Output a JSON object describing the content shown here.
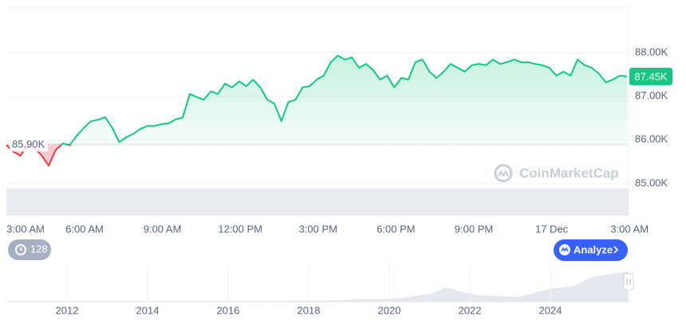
{
  "chart_data": {
    "type": "line",
    "values": [
      85880,
      85730,
      85640,
      85880,
      85820,
      85640,
      85410,
      85770,
      85920,
      85880,
      86100,
      86280,
      86430,
      86460,
      86520,
      86280,
      85950,
      86060,
      86140,
      86250,
      86320,
      86320,
      86360,
      86380,
      86470,
      86510,
      87050,
      86980,
      86920,
      87110,
      87050,
      87290,
      87200,
      87340,
      87230,
      87380,
      87200,
      86920,
      86830,
      86430,
      86870,
      86920,
      87200,
      87230,
      87380,
      87470,
      87780,
      87930,
      87840,
      87890,
      87650,
      87740,
      87600,
      87380,
      87470,
      87200,
      87420,
      87380,
      87780,
      87840,
      87560,
      87420,
      87560,
      87740,
      87650,
      87560,
      87710,
      87740,
      87710,
      87840,
      87740,
      87780,
      87840,
      87780,
      87780,
      87740,
      87710,
      87650,
      87470,
      87560,
      87470,
      87840,
      87710,
      87650,
      87520,
      87320,
      87380,
      87470,
      87450
    ],
    "color": "#16c784",
    "negative_color": "#ea3943",
    "ylim": [
      84270,
      89020
    ],
    "yticks": [
      {
        "value": 85000,
        "label": "85.00K"
      },
      {
        "value": 86000,
        "label": "86.00K"
      },
      {
        "value": 87000,
        "label": "87.00K"
      },
      {
        "value": 88000,
        "label": "88.00K"
      }
    ],
    "xticks": [
      "3:00 AM",
      "6:00 AM",
      "9:00 AM",
      "12:00 PM",
      "3:00 PM",
      "6:00 PM",
      "9:00 PM",
      "17 Dec",
      "3:00 AM"
    ],
    "grid": true,
    "baseline": {
      "value": 85900,
      "label": "85.90K"
    },
    "last_price": {
      "value": 87450,
      "label": "87.45K"
    }
  },
  "badge": "128",
  "button": "Analyze",
  "watermark": "CoinMarketCap",
  "navigator_years": [
    "2012",
    "2014",
    "2016",
    "2018",
    "2020",
    "2022",
    "2024"
  ]
}
